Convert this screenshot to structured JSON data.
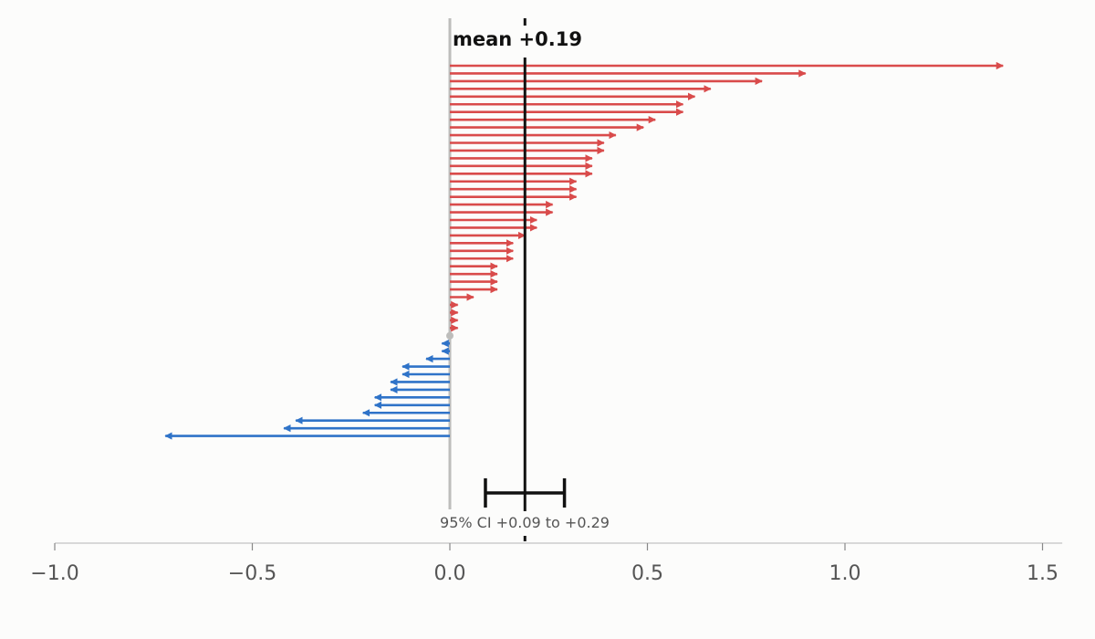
{
  "chart_data": {
    "type": "bar",
    "orientation": "horizontal-arrows",
    "xlim": [
      -1.0,
      1.55
    ],
    "xticks": [
      -1.0,
      -0.5,
      0.0,
      0.5,
      1.0,
      1.5
    ],
    "xtick_labels": [
      "−1.0",
      "−0.5",
      "0.0",
      "0.5",
      "1.0",
      "1.5"
    ],
    "values": [
      1.4,
      0.9,
      0.79,
      0.66,
      0.62,
      0.59,
      0.59,
      0.52,
      0.49,
      0.42,
      0.39,
      0.39,
      0.36,
      0.36,
      0.36,
      0.32,
      0.32,
      0.32,
      0.26,
      0.26,
      0.22,
      0.22,
      0.19,
      0.16,
      0.16,
      0.16,
      0.12,
      0.12,
      0.12,
      0.12,
      0.06,
      0.02,
      0.02,
      0.02,
      0.02,
      0.0,
      -0.02,
      -0.02,
      -0.06,
      -0.12,
      -0.12,
      -0.15,
      -0.15,
      -0.19,
      -0.19,
      -0.22,
      -0.39,
      -0.42,
      -0.72
    ],
    "mean": 0.19,
    "mean_label": "mean +0.19",
    "ci": [
      0.09,
      0.29
    ],
    "ci_label": "95% CI  +0.09 to +0.29",
    "colors": {
      "positive": "#d94b4b",
      "negative": "#2f73c8",
      "zero": "#bdbdbb",
      "mean": "#111111",
      "axis": "#cccccc"
    },
    "grid": false
  }
}
